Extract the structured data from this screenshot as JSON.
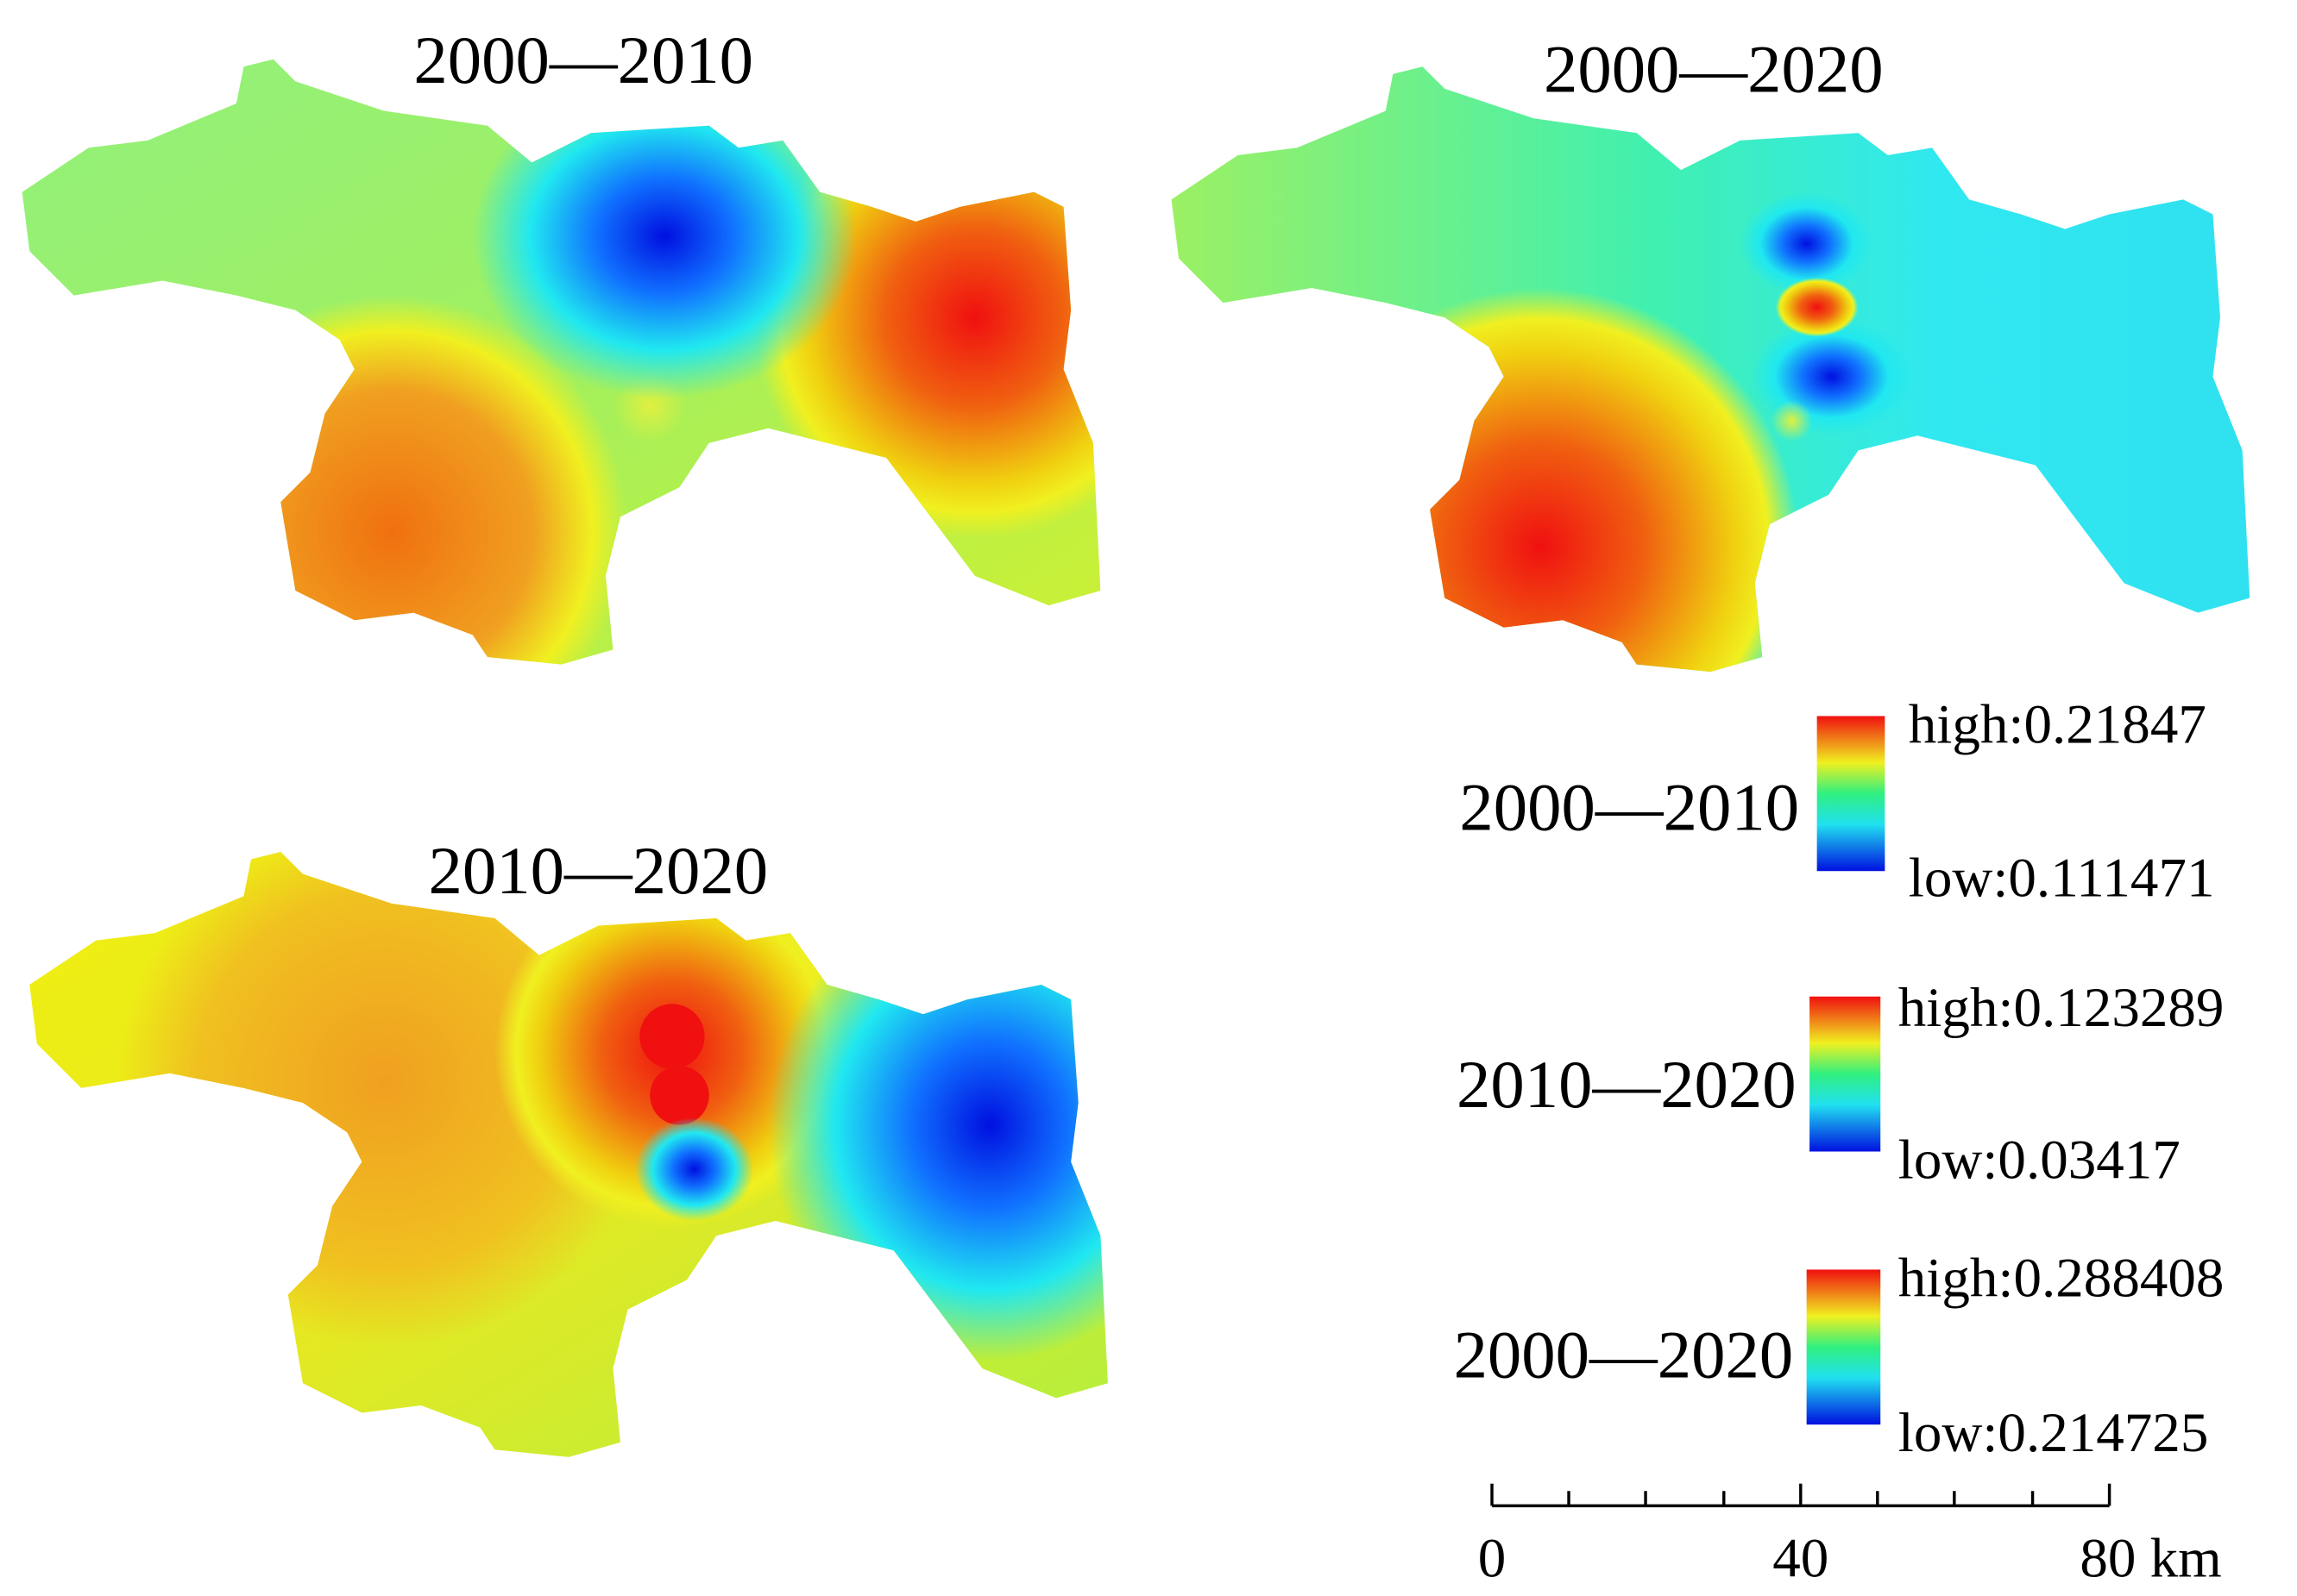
{
  "maps": [
    {
      "title": "2000—2010"
    },
    {
      "title": "2000—2020"
    },
    {
      "title": "2010—2020"
    }
  ],
  "legends": [
    {
      "label": "2000—2010",
      "high": "high:0.21847",
      "low": "low:0.111471"
    },
    {
      "label": "2010—2020",
      "high": "high:0.123289",
      "low": "low:0.03417"
    },
    {
      "label": "2000—2020",
      "high": "high:0.288408",
      "low": "low:0.214725"
    }
  ],
  "scale_bar": {
    "labels": [
      "0",
      "40",
      "80 km"
    ]
  }
}
